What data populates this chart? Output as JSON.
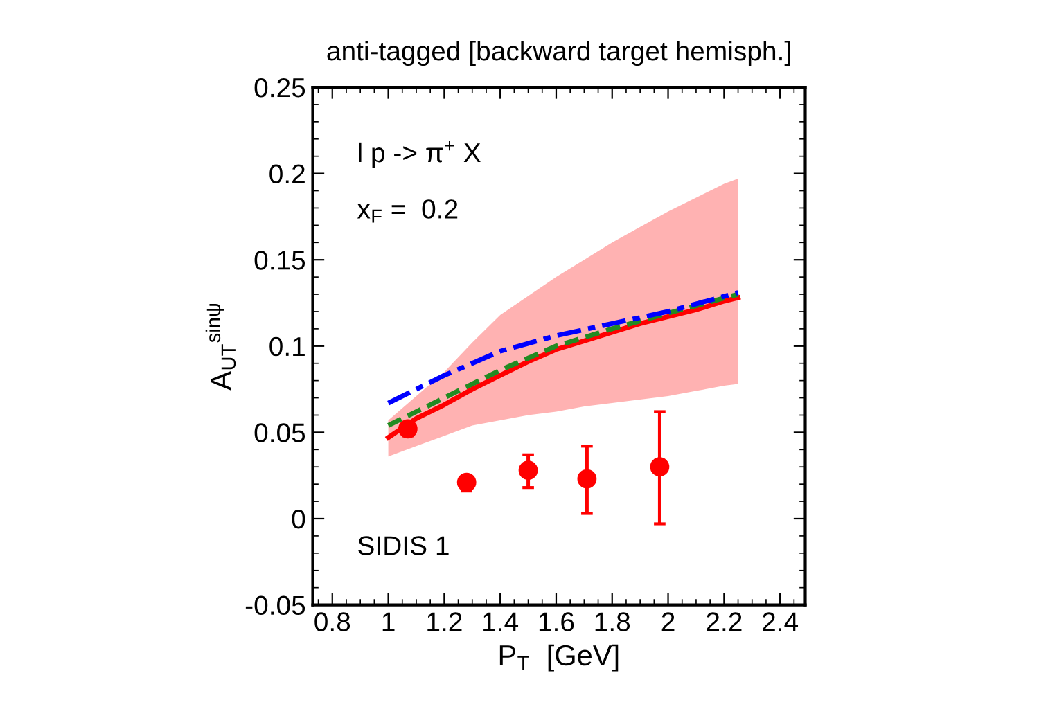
{
  "chart_data": {
    "type": "line",
    "title": "anti-tagged [backward target hemisph.]",
    "xlabel": "P$_{T}$  [GeV]",
    "ylabel": "A$_{UT}$$^{sinψ}$",
    "annotations": [
      "l p -> π$^{+}$ X",
      "x$_{F}$ =  0.2",
      "SIDIS 1"
    ],
    "xlim": [
      0.73,
      2.49
    ],
    "ylim": [
      -0.05,
      0.25
    ],
    "xticks": [
      0.8,
      1,
      1.2,
      1.4,
      1.6,
      1.8,
      2,
      2.2,
      2.4
    ],
    "yticks": [
      -0.05,
      0,
      0.05,
      0.1,
      0.15,
      0.2,
      0.25
    ],
    "grid": false,
    "legend": false,
    "series": [
      {
        "color": "#ff0000",
        "line_style": "solid",
        "x": [
          1.0,
          1.1,
          1.2,
          1.3,
          1.4,
          1.5,
          1.6,
          1.7,
          1.8,
          1.9,
          2.0,
          2.1,
          2.2,
          2.25
        ],
        "values": [
          0.047,
          0.058,
          0.066,
          0.075,
          0.083,
          0.091,
          0.098,
          0.103,
          0.108,
          0.113,
          0.117,
          0.121,
          0.126,
          0.128
        ],
        "lower": [
          0.036,
          0.042,
          0.048,
          0.054,
          0.057,
          0.06,
          0.062,
          0.065,
          0.067,
          0.069,
          0.071,
          0.074,
          0.077,
          0.078
        ],
        "upper": [
          0.057,
          0.071,
          0.085,
          0.102,
          0.118,
          0.129,
          0.14,
          0.15,
          0.16,
          0.169,
          0.178,
          0.186,
          0.194,
          0.197
        ]
      },
      {
        "type": "line",
        "color": "#228b22",
        "line_style": "dashed",
        "x": [
          1.0,
          1.1,
          1.2,
          1.3,
          1.4,
          1.5,
          1.6,
          1.8,
          2.0,
          2.25
        ],
        "values": [
          0.054,
          0.062,
          0.07,
          0.078,
          0.086,
          0.093,
          0.1,
          0.11,
          0.119,
          0.13
        ]
      },
      {
        "type": "line",
        "color": "#0000ff",
        "line_style": "dashdot",
        "x": [
          1.0,
          1.2,
          1.3,
          1.4,
          1.6,
          1.8,
          2.0,
          2.25
        ],
        "values": [
          0.067,
          0.083,
          0.09,
          0.097,
          0.106,
          0.113,
          0.12,
          0.131
        ]
      },
      {
        "type": "scatter",
        "color": "#ff0000",
        "marker": "circle",
        "x": [
          1.07,
          1.28,
          1.5,
          1.71,
          1.97
        ],
        "values": [
          0.052,
          0.021,
          0.028,
          0.023,
          0.03
        ],
        "errors": [
          [
            0.048,
            0.055
          ],
          [
            0.016,
            0.025
          ],
          [
            0.018,
            0.037
          ],
          [
            0.003,
            0.042
          ],
          [
            -0.003,
            0.062
          ]
        ]
      }
    ]
  }
}
